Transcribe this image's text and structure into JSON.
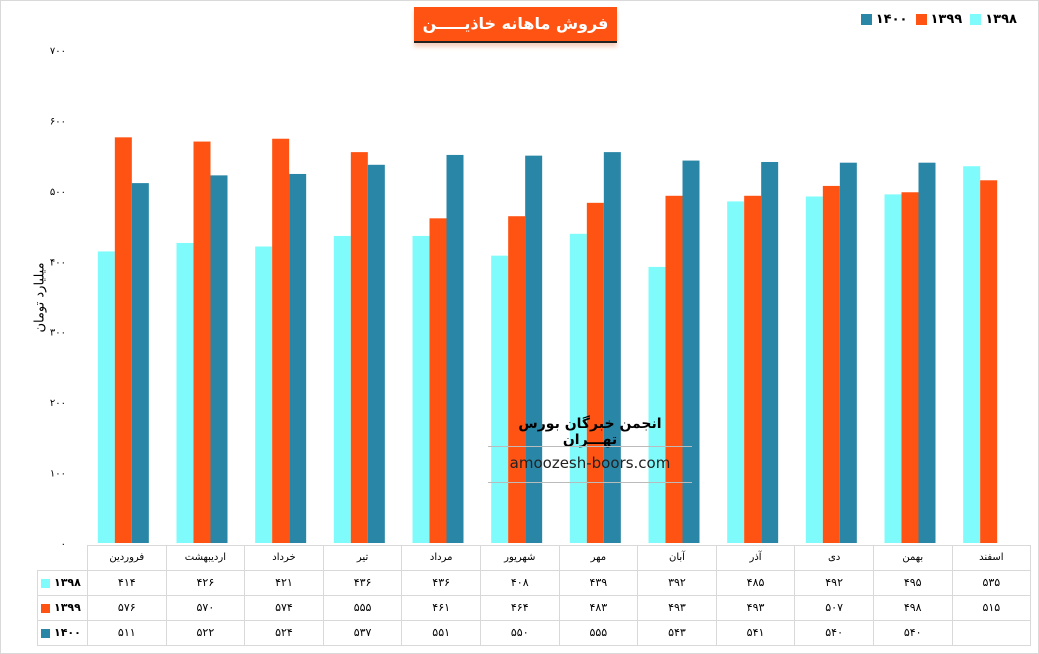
{
  "title": "فروش ماهانه خاذیـــــن",
  "watermark": {
    "line1": "انجمن خبرگان بورس تهـــران",
    "line2": "amoozesh-boors.com"
  },
  "chart_data": {
    "type": "bar",
    "title": "فروش ماهانه خاذیـــــن",
    "ylabel": "میلیارد تومان",
    "xlabel": "",
    "ylim": [
      0,
      700
    ],
    "yticks": [
      0,
      100,
      200,
      300,
      400,
      500,
      600,
      700
    ],
    "ytick_labels": [
      "۰",
      "۱۰۰",
      "۲۰۰",
      "۳۰۰",
      "۴۰۰",
      "۵۰۰",
      "۶۰۰",
      "۷۰۰"
    ],
    "legend_position": "top-right",
    "categories": [
      "فروردین",
      "اردیبهشت",
      "خرداد",
      "تیر",
      "مرداد",
      "شهریور",
      "مهر",
      "آبان",
      "آذر",
      "دی",
      "بهمن",
      "اسفند"
    ],
    "series": [
      {
        "name": "۱۳۹۸",
        "color": "#80fbfb",
        "values": [
          414,
          426,
          421,
          436,
          436,
          408,
          439,
          392,
          485,
          492,
          495,
          535
        ],
        "labels": [
          "۴۱۴",
          "۴۲۶",
          "۴۲۱",
          "۴۳۶",
          "۴۳۶",
          "۴۰۸",
          "۴۳۹",
          "۳۹۲",
          "۴۸۵",
          "۴۹۲",
          "۴۹۵",
          "۵۳۵"
        ]
      },
      {
        "name": "۱۳۹۹",
        "color": "#fe5312",
        "values": [
          576,
          570,
          574,
          555,
          461,
          464,
          483,
          493,
          493,
          507,
          498,
          515
        ],
        "labels": [
          "۵۷۶",
          "۵۷۰",
          "۵۷۴",
          "۵۵۵",
          "۴۶۱",
          "۴۶۴",
          "۴۸۳",
          "۴۹۳",
          "۴۹۳",
          "۵۰۷",
          "۴۹۸",
          "۵۱۵"
        ]
      },
      {
        "name": "۱۴۰۰",
        "color": "#2a86a6",
        "values": [
          511,
          522,
          524,
          537,
          551,
          550,
          555,
          543,
          541,
          540,
          540,
          null
        ],
        "labels": [
          "۵۱۱",
          "۵۲۲",
          "۵۲۴",
          "۵۳۷",
          "۵۵۱",
          "۵۵۰",
          "۵۵۵",
          "۵۴۳",
          "۵۴۱",
          "۵۴۰",
          "۵۴۰",
          ""
        ]
      }
    ]
  }
}
